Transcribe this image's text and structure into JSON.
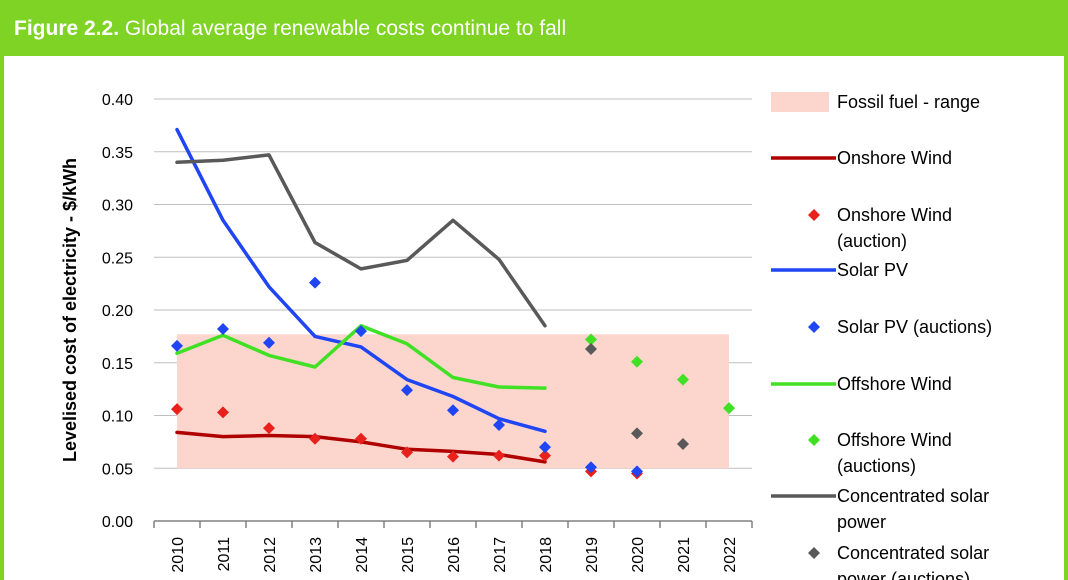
{
  "figure": {
    "number": "Figure 2.2.",
    "title": "Global average renewable costs continue to fall"
  },
  "chart_data": {
    "type": "line",
    "title": "Figure 2.2. Global average renewable costs continue to fall",
    "ylabel": "Levelised cost of electricity - $/kWh",
    "xlabel": "",
    "categories": [
      "2010",
      "2011",
      "2012",
      "2013",
      "2014",
      "2015",
      "2016",
      "2017",
      "2018",
      "2019",
      "2020",
      "2021",
      "2022"
    ],
    "ylim": [
      0,
      0.4
    ],
    "yticks": [
      "0.00",
      "0.05",
      "0.10",
      "0.15",
      "0.20",
      "0.25",
      "0.30",
      "0.35",
      "0.40"
    ],
    "grid": true,
    "legend_position": "right",
    "band": {
      "name": "Fossil fuel - range",
      "low": 0.05,
      "high": 0.177,
      "from": "2010",
      "to": "2022",
      "color": "#fcd6cc"
    },
    "series": [
      {
        "name": "Onshore Wind",
        "kind": "line",
        "color": "#b00000",
        "values": [
          0.084,
          0.08,
          0.081,
          0.08,
          0.075,
          0.068,
          0.066,
          0.063,
          0.056,
          null,
          null,
          null,
          null
        ]
      },
      {
        "name": "Onshore Wind (auction)",
        "kind": "marker",
        "color": "#e8211c",
        "values": [
          0.106,
          0.103,
          0.088,
          0.078,
          0.078,
          0.065,
          0.061,
          0.062,
          0.062,
          0.047,
          0.045,
          null,
          null
        ]
      },
      {
        "name": "Solar PV",
        "kind": "line",
        "color": "#1f45f5",
        "values": [
          0.371,
          0.285,
          0.222,
          0.175,
          0.165,
          0.134,
          0.118,
          0.097,
          0.085,
          null,
          null,
          null,
          null
        ]
      },
      {
        "name": "Solar PV (auctions)",
        "kind": "marker",
        "color": "#1f45f5",
        "values": [
          0.166,
          0.182,
          0.169,
          0.226,
          0.18,
          0.124,
          0.105,
          0.091,
          0.07,
          0.051,
          0.047,
          null,
          null
        ]
      },
      {
        "name": "Offshore Wind",
        "kind": "line",
        "color": "#40e024",
        "values": [
          0.159,
          0.176,
          0.157,
          0.146,
          0.185,
          0.168,
          0.136,
          0.127,
          0.126,
          null,
          null,
          null,
          null
        ]
      },
      {
        "name": "Offshore Wind (auctions)",
        "kind": "marker",
        "color": "#40e024",
        "values": [
          null,
          null,
          null,
          null,
          null,
          null,
          null,
          null,
          null,
          0.172,
          0.151,
          0.134,
          0.107
        ]
      },
      {
        "name": "Concentrated solar power",
        "kind": "line",
        "color": "#595959",
        "values": [
          0.34,
          0.342,
          0.347,
          0.264,
          0.239,
          0.247,
          0.285,
          0.248,
          0.185,
          null,
          null,
          null,
          null
        ]
      },
      {
        "name": "Concentrated solar power (auctions)",
        "kind": "marker",
        "color": "#595959",
        "values": [
          null,
          null,
          null,
          null,
          null,
          null,
          null,
          null,
          null,
          0.163,
          0.083,
          0.073,
          null
        ]
      }
    ]
  },
  "legend": [
    {
      "label_lines": [
        "Fossil fuel - range"
      ],
      "type": "band",
      "color": "#fcd6cc"
    },
    {
      "label_lines": [
        "Onshore Wind"
      ],
      "type": "line",
      "color": "#b00000"
    },
    {
      "label_lines": [
        "Onshore Wind",
        "(auction)"
      ],
      "type": "marker",
      "color": "#e8211c"
    },
    {
      "label_lines": [
        "Solar PV"
      ],
      "type": "line",
      "color": "#1f45f5"
    },
    {
      "label_lines": [
        "Solar PV (auctions)"
      ],
      "type": "marker",
      "color": "#1f45f5"
    },
    {
      "label_lines": [
        "Offshore Wind"
      ],
      "type": "line",
      "color": "#40e024"
    },
    {
      "label_lines": [
        "Offshore Wind",
        "(auctions)"
      ],
      "type": "marker",
      "color": "#40e024"
    },
    {
      "label_lines": [
        "Concentrated solar",
        "power"
      ],
      "type": "line",
      "color": "#595959"
    },
    {
      "label_lines": [
        "Concentrated solar",
        "power (auctions)"
      ],
      "type": "marker",
      "color": "#595959"
    }
  ],
  "colors": {
    "accent": "#7fd324",
    "grid": "#bfbfbf"
  }
}
